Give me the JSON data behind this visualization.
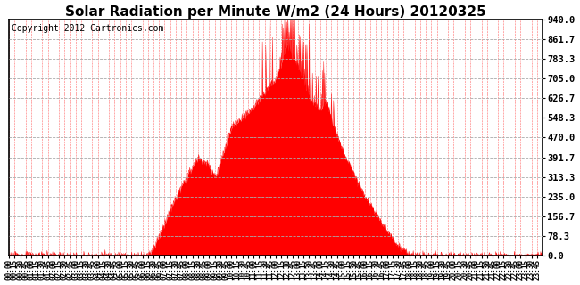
{
  "title": "Solar Radiation per Minute W/m2 (24 Hours) 20120325",
  "copyright_text": "Copyright 2012 Cartronics.com",
  "fill_color": "#FF0000",
  "line_color": "#FF0000",
  "background_color": "#FFFFFF",
  "plot_bg_color": "#FFFFFF",
  "grid_color_h": "#AAAAAA",
  "grid_color_v": "#FF0000",
  "baseline_color": "#FF0000",
  "yticks": [
    0.0,
    78.3,
    156.7,
    235.0,
    313.3,
    391.7,
    470.0,
    548.3,
    626.7,
    705.0,
    783.3,
    861.7,
    940.0
  ],
  "ymax": 940.0,
  "ymin": 0.0,
  "title_fontsize": 11,
  "copyright_fontsize": 7,
  "xtick_fontsize": 5.5,
  "ytick_fontsize": 7.5
}
